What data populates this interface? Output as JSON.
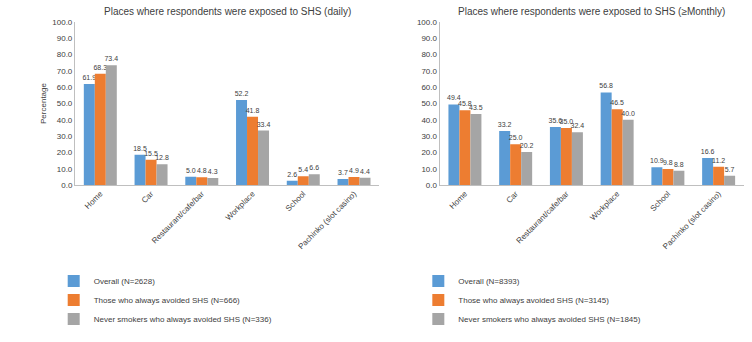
{
  "chart_data": [
    {
      "type": "bar",
      "title": "Places where respondents were exposed to SHS (daily)",
      "y_label": "Percentage",
      "categories": [
        "Home",
        "Car",
        "Restaurant/cafe/bar",
        "Workplace",
        "School",
        "Pachinko (slot casino)"
      ],
      "series": [
        {
          "name": "Overall (N=2628)",
          "color": "#5b9bd5",
          "values": [
            61.9,
            18.5,
            5.0,
            52.2,
            2.6,
            3.7
          ],
          "value_labels": [
            "61.9",
            "18.5",
            "5.0",
            "52.2",
            "2.6",
            "3.7"
          ]
        },
        {
          "name": "Those who always avoided SHS (N=666)",
          "color": "#ed7d31",
          "values": [
            68.3,
            15.5,
            4.8,
            41.8,
            5.4,
            4.9
          ],
          "value_labels": [
            "68.3",
            "15.5",
            "4.8",
            "41.8",
            "5.4",
            "4.9"
          ]
        },
        {
          "name": "Never smokers who always avoided SHS (N=336)",
          "color": "#a5a5a5",
          "values": [
            73.4,
            12.8,
            4.3,
            33.4,
            6.6,
            4.4
          ],
          "value_labels": [
            "73.4",
            "12.8",
            "4.3",
            "33.4",
            "6.6",
            "4.4"
          ]
        }
      ],
      "ylim": [
        0,
        100
      ],
      "yticks": [
        {
          "value": 0,
          "label": "0.0"
        },
        {
          "value": 10,
          "label": "10.0"
        },
        {
          "value": 20,
          "label": "20.0"
        },
        {
          "value": 30,
          "label": "30.0"
        },
        {
          "value": 40,
          "label": "40.0"
        },
        {
          "value": 50,
          "label": "50.0"
        },
        {
          "value": 60,
          "label": "60.0"
        },
        {
          "value": 70,
          "label": "70.0"
        },
        {
          "value": 80,
          "label": "80.0"
        },
        {
          "value": 90,
          "label": "90.0"
        },
        {
          "value": 100,
          "label": "100.0"
        }
      ],
      "grid": false,
      "data_labels": true,
      "legend": "bottom"
    },
    {
      "type": "bar",
      "title": "Places where respondents were exposed to SHS (≥Monthly)",
      "categories": [
        "Home",
        "Car",
        "Restaurant/cafe/bar",
        "Workplace",
        "School",
        "Pachinko (slot casino)"
      ],
      "series": [
        {
          "name": "Overall (N=8393)",
          "color": "#5b9bd5",
          "values": [
            49.4,
            33.2,
            35.6,
            56.8,
            10.9,
            16.6
          ],
          "value_labels": [
            "49.4",
            "33.2",
            "35.6",
            "56.8",
            "10.9",
            "16.6"
          ]
        },
        {
          "name": "Those who always avoided SHS (N=3145)",
          "color": "#ed7d31",
          "values": [
            45.8,
            25.0,
            35.0,
            46.5,
            9.8,
            11.2
          ],
          "value_labels": [
            "45.8",
            "25.0",
            "35.0",
            "46.5",
            "9.8",
            "11.2"
          ]
        },
        {
          "name": "Never smokers who always avoided SHS (N=1845)",
          "color": "#a5a5a5",
          "values": [
            43.5,
            20.2,
            32.4,
            40.0,
            8.8,
            5.7
          ],
          "value_labels": [
            "43.5",
            "20.2",
            "32.4",
            "40.0",
            "8.8",
            "5.7"
          ]
        }
      ],
      "ylim": [
        0,
        100
      ],
      "yticks": [
        {
          "value": 0,
          "label": "0.0"
        },
        {
          "value": 10,
          "label": "10.0"
        },
        {
          "value": 20,
          "label": "20.0"
        },
        {
          "value": 30,
          "label": "30.0"
        },
        {
          "value": 40,
          "label": "40.0"
        },
        {
          "value": 50,
          "label": "50.0"
        },
        {
          "value": 60,
          "label": "60.0"
        },
        {
          "value": 70,
          "label": "70.0"
        },
        {
          "value": 80,
          "label": "80.0"
        },
        {
          "value": 90,
          "label": "90.0"
        },
        {
          "value": 100,
          "label": "100.0"
        }
      ],
      "grid": false,
      "data_labels": true,
      "legend": "bottom"
    }
  ]
}
